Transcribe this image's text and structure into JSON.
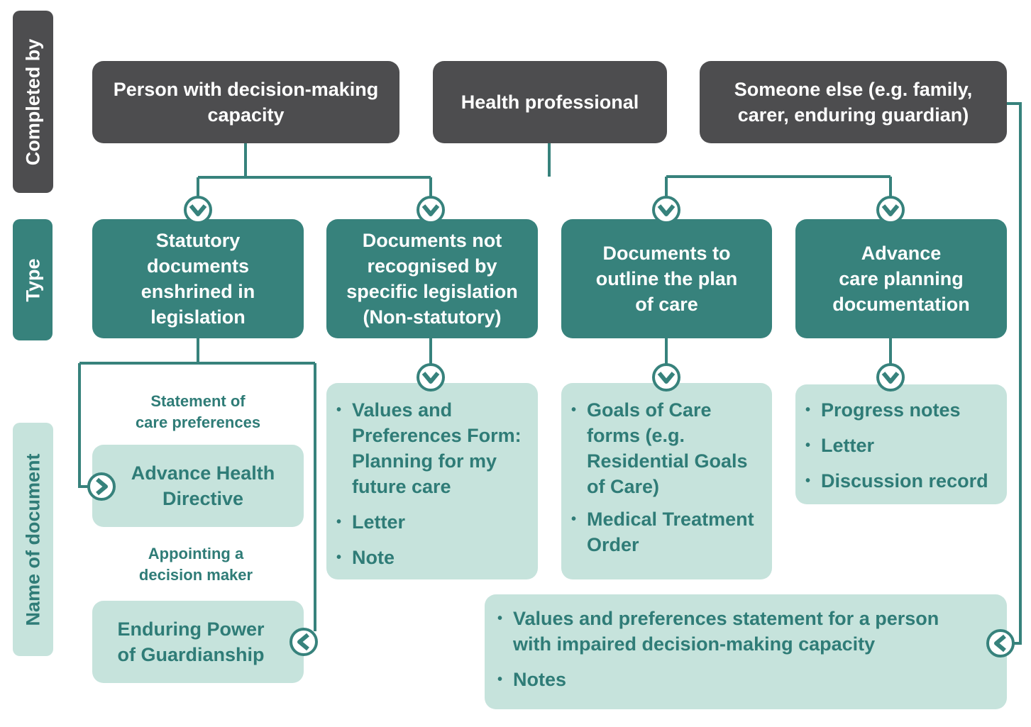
{
  "side_labels": {
    "completed_by": "Completed by",
    "type": "Type",
    "name": "Name of document"
  },
  "completed_by": [
    {
      "line1": "Person with decision-making",
      "line2": "capacity"
    },
    {
      "line1": "Health professional",
      "line2": ""
    },
    {
      "line1": "Someone else (e.g. family,",
      "line2": "carer, enduring guardian)"
    }
  ],
  "types": [
    [
      "Statutory",
      "documents",
      "enshrined in",
      "legislation"
    ],
    [
      "Documents not",
      "recognised by",
      "specific legislation",
      "(Non-statutory)"
    ],
    [
      "Documents to",
      "outline the plan",
      "of care"
    ],
    [
      "Advance",
      "care planning",
      "documentation"
    ]
  ],
  "statutory": {
    "label1": [
      "Statement of",
      "care preferences"
    ],
    "doc1": [
      "Advance Health",
      "Directive"
    ],
    "label2": [
      "Appointing a",
      "decision maker"
    ],
    "doc2": [
      "Enduring Power",
      "of Guardianship"
    ]
  },
  "non_statutory": [
    "Values and Preferences Form: Planning for my future care",
    "Letter",
    "Note"
  ],
  "plan_of_care": [
    "Goals of Care forms (e.g. Residential Goals of Care)",
    "Medical Treatment Order"
  ],
  "acp": [
    "Progress notes",
    "Letter",
    "Discussion record"
  ],
  "someone_else": [
    "Values and preferences statement for a  person with impaired decision-making capacity",
    "Notes"
  ],
  "colors": {
    "grey": "#4d4d4f",
    "teal": "#37827c",
    "light": "#c6e3dc",
    "text_teal": "#2f7c77"
  }
}
